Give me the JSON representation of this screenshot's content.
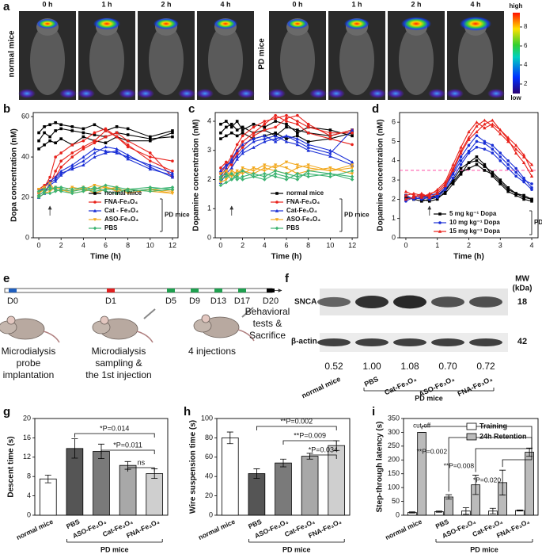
{
  "panel_a": {
    "label": "a",
    "groups": [
      {
        "name": "normal mice",
        "times": [
          "0 h",
          "1 h",
          "2 h",
          "4 h"
        ]
      },
      {
        "name": "PD mice",
        "times": [
          "0 h",
          "1 h",
          "2 h",
          "4 h"
        ]
      }
    ],
    "colorbar": {
      "top": "high",
      "bottom": "low",
      "lim": [
        1,
        9.5
      ],
      "ticks": [
        8,
        6,
        4,
        2
      ]
    }
  },
  "panel_e": {
    "label": "e",
    "days": [
      "D0",
      "D1",
      "D5",
      "D9",
      "D13",
      "D17",
      "D20"
    ],
    "day_colors": [
      "#1f5fbf",
      "#e02020",
      "#1fa050",
      "#1fa050",
      "#1fa050",
      "#1fa050",
      "#000000"
    ],
    "captions": [
      {
        "lines": [
          "Microdialysis",
          "probe",
          "implantation"
        ],
        "color": "#1f5fbf"
      },
      {
        "lines": [
          "Microdialysis",
          "sampling &",
          "the 1st injection"
        ],
        "color": "#e02020"
      },
      {
        "lines": [
          "4 injections"
        ],
        "color": "#1fa050"
      },
      {
        "lines": [
          "Behavioral",
          "tests &",
          "Sacrifice"
        ],
        "color": "#000000"
      }
    ]
  },
  "panel_f": {
    "label": "f",
    "rows": [
      "SNCA",
      "β-actin"
    ],
    "mw_title": [
      "MW",
      "(kDa)"
    ],
    "mw": [
      18,
      42
    ],
    "lanes": [
      "normal mice",
      "PBS",
      "Cat-Fe₃O₄",
      "ASO-Fe₃O₄",
      "FNA-Fe₃O₄"
    ],
    "values": [
      0.52,
      1.0,
      1.08,
      0.7,
      0.72
    ],
    "value_labels": [
      "0.52",
      "1.00",
      "1.08",
      "0.70",
      "0.72"
    ],
    "group_label": "PD mice"
  },
  "chart_data": [
    {
      "type": "line",
      "panel_label": "b",
      "xlabel": "Time (h)",
      "ylabel": "Dopa concentration (nM)",
      "x": [
        0,
        0.5,
        1,
        1.5,
        2,
        3,
        4,
        5,
        6,
        7,
        8,
        10,
        12
      ],
      "xlim": [
        -0.5,
        12.5
      ],
      "xticks": [
        0,
        2,
        4,
        6,
        8,
        10,
        12
      ],
      "ylim": [
        0,
        62
      ],
      "yticks": [
        0,
        20,
        40,
        60
      ],
      "group_label": "PD mice",
      "series": [
        {
          "name": "normal mice",
          "color": "#000000",
          "marker": "square",
          "replicates": [
            [
              52,
              55,
              56,
              57,
              56,
              55,
              54,
              56,
              53,
              55,
              54,
              50,
              53
            ],
            [
              48,
              52,
              50,
              53,
              54,
              53,
              52,
              51,
              50,
              52,
              51,
              49,
              50
            ],
            [
              44,
              46,
              48,
              47,
              49,
              46,
              50,
              48,
              47,
              50,
              48,
              48,
              52
            ]
          ]
        },
        {
          "name": "FNA-Fe₃O₄",
          "color": "#e8221b",
          "marker": "circle",
          "replicates": [
            [
              22,
              25,
              30,
              40,
              42,
              46,
              48,
              52,
              54,
              50,
              45,
              40,
              38
            ],
            [
              20,
              22,
              26,
              33,
              38,
              42,
              45,
              48,
              53,
              50,
              46,
              38,
              33
            ],
            [
              24,
              26,
              28,
              30,
              35,
              40,
              44,
              47,
              50,
              52,
              48,
              42,
              30
            ]
          ]
        },
        {
          "name": "Cat - Fe₃O₄",
          "color": "#1a2fd6",
          "marker": "triangle",
          "replicates": [
            [
              23,
              25,
              28,
              30,
              33,
              36,
              40,
              44,
              43,
              42,
              40,
              36,
              32
            ],
            [
              21,
              23,
              26,
              28,
              31,
              35,
              38,
              42,
              45,
              44,
              41,
              35,
              30
            ],
            [
              20,
              22,
              27,
              29,
              32,
              34,
              36,
              40,
              42,
              43,
              39,
              34,
              31
            ]
          ]
        },
        {
          "name": "ASO-Fe₃O₄",
          "color": "#f2a81d",
          "marker": "triangle-down",
          "replicates": [
            [
              22,
              24,
              25,
              24,
              23,
              25,
              24,
              26,
              25,
              24,
              23,
              24,
              22
            ],
            [
              20,
              22,
              23,
              25,
              24,
              22,
              23,
              24,
              25,
              23,
              24,
              23,
              22
            ],
            [
              24,
              25,
              27,
              23,
              24,
              23,
              25,
              22,
              24,
              25,
              22,
              24,
              23
            ]
          ]
        },
        {
          "name": "PBS",
          "color": "#3cb371",
          "marker": "diamond",
          "replicates": [
            [
              21,
              23,
              24,
              25,
              25,
              24,
              25,
              24,
              26,
              25,
              24,
              25,
              24
            ],
            [
              20,
              22,
              22,
              23,
              24,
              23,
              24,
              23,
              24,
              24,
              23,
              24,
              25
            ],
            [
              23,
              24,
              25,
              24,
              23,
              22,
              23,
              25,
              23,
              22,
              24,
              23,
              24
            ]
          ]
        }
      ]
    },
    {
      "type": "line",
      "panel_label": "c",
      "xlabel": "Time (h)",
      "ylabel": "Dopamine concentration (nM)",
      "x": [
        0,
        0.5,
        1,
        1.5,
        2,
        3,
        4,
        5,
        6,
        7,
        8,
        10,
        12
      ],
      "xlim": [
        -0.5,
        12.5
      ],
      "xticks": [
        0,
        2,
        4,
        6,
        8,
        10,
        12
      ],
      "ylim": [
        0,
        4.3
      ],
      "yticks": [
        0,
        1,
        2,
        3,
        4
      ],
      "group_label": "PD mice",
      "series": [
        {
          "name": "normal mice",
          "color": "#000000",
          "marker": "square",
          "replicates": [
            [
              3.6,
              3.8,
              3.9,
              3.7,
              3.8,
              3.6,
              3.7,
              3.5,
              3.8,
              3.7,
              3.6,
              3.5,
              3.7
            ],
            [
              3.4,
              3.5,
              3.6,
              3.5,
              3.6,
              3.4,
              3.5,
              3.6,
              3.4,
              3.5,
              3.3,
              3.4,
              3.6
            ],
            [
              3.9,
              4.0,
              3.8,
              4.0,
              3.7,
              3.9,
              3.8,
              4.0,
              3.9,
              3.6,
              3.8,
              3.7,
              3.5
            ]
          ]
        },
        {
          "name": "FNA-Fe₃O₄",
          "color": "#e8221b",
          "marker": "circle",
          "replicates": [
            [
              2.2,
              2.5,
              2.8,
              3.2,
              3.5,
              3.8,
              4.0,
              4.1,
              4.2,
              4.0,
              3.8,
              3.6,
              3.6
            ],
            [
              2.0,
              2.3,
              2.6,
              3.0,
              3.3,
              3.6,
              3.9,
              4.2,
              4.0,
              3.9,
              3.6,
              3.4,
              3.2
            ],
            [
              2.4,
              2.6,
              2.5,
              2.9,
              3.1,
              3.5,
              3.7,
              3.8,
              4.1,
              4.2,
              3.9,
              3.5,
              3.7
            ]
          ]
        },
        {
          "name": "Cat-Fe₃O₄",
          "color": "#1a2fd6",
          "marker": "triangle",
          "replicates": [
            [
              2.1,
              2.4,
              2.7,
              3.0,
              3.2,
              3.4,
              3.5,
              3.3,
              3.5,
              3.4,
              3.2,
              3.0,
              2.6
            ],
            [
              2.3,
              2.5,
              2.6,
              2.8,
              3.0,
              3.3,
              3.4,
              3.5,
              3.3,
              3.2,
              3.0,
              2.8,
              2.5
            ],
            [
              1.9,
              2.2,
              2.4,
              2.7,
              2.9,
              3.1,
              3.3,
              3.4,
              3.5,
              3.3,
              3.1,
              2.9,
              3.7
            ]
          ]
        },
        {
          "name": "ASO-Fe₃O₄",
          "color": "#f2a81d",
          "marker": "triangle-down",
          "replicates": [
            [
              2.0,
              2.1,
              2.3,
              2.2,
              2.4,
              2.3,
              2.5,
              2.4,
              2.6,
              2.5,
              2.4,
              2.3,
              2.5
            ],
            [
              2.2,
              2.3,
              2.1,
              2.3,
              2.2,
              2.4,
              2.3,
              2.5,
              2.4,
              2.2,
              2.3,
              2.4,
              2.2
            ],
            [
              1.9,
              2.0,
              2.2,
              2.1,
              2.3,
              2.2,
              2.4,
              2.3,
              2.2,
              2.4,
              2.5,
              2.3,
              2.4
            ]
          ]
        },
        {
          "name": "PBS",
          "color": "#3cb371",
          "marker": "diamond",
          "replicates": [
            [
              2.0,
              2.1,
              2.2,
              2.0,
              2.1,
              2.2,
              2.1,
              2.3,
              2.2,
              2.1,
              2.2,
              2.1,
              2.3
            ],
            [
              1.8,
              1.9,
              2.0,
              2.1,
              2.0,
              2.1,
              2.2,
              2.1,
              2.0,
              2.2,
              2.1,
              2.2,
              2.0
            ],
            [
              2.1,
              2.2,
              2.0,
              2.2,
              2.3,
              2.1,
              2.0,
              2.2,
              2.1,
              2.0,
              2.3,
              2.2,
              2.1
            ]
          ]
        }
      ]
    },
    {
      "type": "line",
      "panel_label": "d",
      "xlabel": "Time (h)",
      "ylabel": "Dopamine concentration (nM)",
      "x": [
        0,
        0.25,
        0.5,
        0.75,
        1,
        1.25,
        1.5,
        1.75,
        2,
        2.25,
        2.5,
        2.75,
        3,
        3.25,
        3.5,
        3.75,
        4
      ],
      "xlim": [
        -0.2,
        4.2
      ],
      "xticks": [
        0,
        1,
        2,
        3,
        4
      ],
      "ylim": [
        0,
        6.5
      ],
      "yticks": [
        0,
        1,
        2,
        3,
        4,
        5,
        6
      ],
      "group_label": "PD mice",
      "reference_line": 3.5,
      "reference_color": "#ff3399",
      "series": [
        {
          "name": "5 mg kg⁻¹ Dopa",
          "color": "#000000",
          "marker": "square",
          "replicates": [
            [
              2.1,
              2.0,
              1.9,
              2.0,
              2.1,
              2.3,
              2.8,
              3.3,
              3.9,
              4.0,
              3.7,
              3.4,
              3.0,
              2.6,
              2.3,
              2.1,
              2.0
            ],
            [
              2.0,
              2.1,
              2.0,
              1.9,
              2.0,
              2.4,
              3.0,
              3.6,
              3.9,
              4.2,
              3.8,
              3.2,
              2.8,
              2.4,
              2.2,
              2.0,
              1.9
            ],
            [
              2.2,
              2.0,
              2.1,
              2.1,
              2.2,
              2.5,
              2.9,
              3.4,
              3.6,
              3.8,
              3.5,
              3.3,
              2.9,
              2.5,
              2.3,
              2.2,
              2.0
            ]
          ]
        },
        {
          "name": "10 mg kg⁻¹ Dopa",
          "color": "#1a2fd6",
          "marker": "circle",
          "replicates": [
            [
              2.0,
              2.1,
              2.2,
              2.0,
              2.2,
              2.6,
              3.3,
              4.0,
              4.5,
              5.0,
              4.9,
              4.6,
              4.2,
              3.8,
              3.4,
              3.0,
              2.8
            ],
            [
              2.2,
              2.0,
              2.1,
              2.2,
              2.3,
              2.7,
              3.4,
              4.2,
              4.8,
              5.3,
              5.0,
              4.8,
              4.4,
              4.0,
              3.6,
              3.1,
              2.6
            ],
            [
              1.9,
              2.1,
              2.0,
              2.1,
              2.1,
              2.5,
              3.1,
              3.8,
              4.4,
              4.7,
              4.6,
              4.4,
              4.0,
              3.6,
              3.2,
              2.9,
              2.5
            ]
          ]
        },
        {
          "name": "15 mg kg⁻¹ Dopa",
          "color": "#e8221b",
          "marker": "triangle",
          "replicates": [
            [
              2.4,
              2.2,
              2.1,
              2.3,
              2.4,
              2.8,
              3.6,
              4.5,
              5.2,
              5.8,
              6.1,
              5.8,
              5.4,
              5.0,
              4.6,
              4.2,
              3.8
            ],
            [
              2.2,
              2.3,
              2.2,
              2.2,
              2.5,
              2.9,
              3.8,
              4.7,
              5.5,
              6.0,
              5.7,
              5.9,
              5.6,
              5.2,
              4.8,
              4.3,
              3.5
            ],
            [
              2.0,
              2.1,
              2.3,
              2.1,
              2.3,
              2.7,
              3.5,
              4.4,
              5.1,
              5.5,
              5.9,
              6.1,
              5.6,
              5.1,
              4.4,
              3.9,
              3.2
            ]
          ]
        }
      ]
    },
    {
      "type": "bar",
      "panel_label": "g",
      "ylabel": "Descent time (s)",
      "categories": [
        "normal mice",
        "PBS",
        "ASO-Fe₃O₄",
        "Cat-Fe₃O₄",
        "FNA-Fe₃O₄"
      ],
      "values": [
        7.5,
        13.8,
        13.2,
        10.3,
        8.6
      ],
      "errors": [
        0.8,
        2.0,
        1.5,
        0.8,
        1.0
      ],
      "colors": [
        "#ffffff",
        "#555555",
        "#7a7a7a",
        "#a8a8a8",
        "#cfcfcf"
      ],
      "ylim": [
        0,
        20
      ],
      "yticks": [
        0,
        4,
        8,
        12,
        16,
        20
      ],
      "group_label": "PD mice",
      "annotations": [
        "*P=0.014",
        "*P=0.011",
        "ns"
      ]
    },
    {
      "type": "bar",
      "panel_label": "h",
      "ylabel": "Wire suspension time (s)",
      "categories": [
        "normal mice",
        "PBS",
        "ASO-Fe₃O₄",
        "Cat-Fe₃O₄",
        "FNA-Fe₃O₄"
      ],
      "values": [
        80,
        43,
        54,
        61,
        72
      ],
      "errors": [
        6,
        5,
        4,
        3,
        5
      ],
      "colors": [
        "#ffffff",
        "#555555",
        "#7a7a7a",
        "#a8a8a8",
        "#cfcfcf"
      ],
      "ylim": [
        0,
        100
      ],
      "yticks": [
        0,
        20,
        40,
        60,
        80,
        100
      ],
      "group_label": "PD mice",
      "annotations": [
        "**P=0.002",
        "**P=0.009",
        "*P=0.034"
      ]
    },
    {
      "type": "grouped-bar",
      "panel_label": "i",
      "ylabel": "Step-through latency (s)",
      "categories": [
        "normal mice",
        "PBS",
        "ASO-Fe₃O₄",
        "Cat-Fe₃O₄",
        "FNA-Fe₃O₄"
      ],
      "series": [
        {
          "name": "Training",
          "color": "#ffffff",
          "values": [
            10,
            13,
            15,
            15,
            17
          ],
          "errors": [
            2,
            2,
            12,
            10,
            2
          ]
        },
        {
          "name": "24h Retention",
          "color": "#bbbbbb",
          "values": [
            300,
            66,
            110,
            118,
            228
          ],
          "errors": [
            0,
            8,
            35,
            45,
            15
          ]
        }
      ],
      "ylim": [
        0,
        350
      ],
      "yticks": [
        0,
        50,
        100,
        150,
        200,
        250,
        300,
        350
      ],
      "group_label": "PD mice",
      "annotations": [
        "cut-off",
        "**P=0.002",
        "**P=0.008",
        "*P=0.020"
      ]
    }
  ]
}
